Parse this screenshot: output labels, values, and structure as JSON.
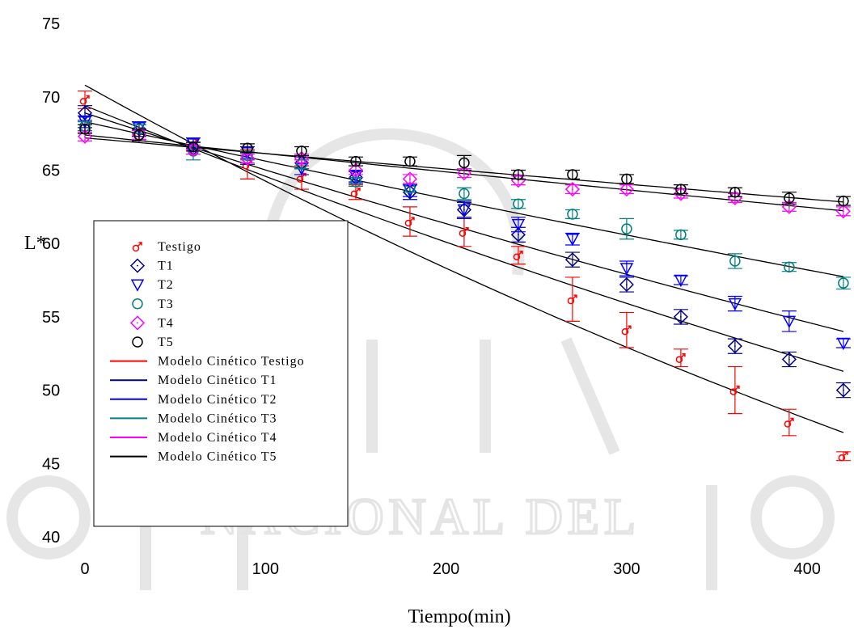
{
  "watermark_text": "NACIONAL DEL",
  "chart_data": {
    "type": "scatter",
    "xlabel": "Tiempo(min)",
    "ylabel": "L*",
    "xlim": [
      0,
      420
    ],
    "ylim": [
      40,
      75
    ],
    "xticks": [
      0,
      100,
      200,
      300,
      400
    ],
    "yticks": [
      40,
      45,
      50,
      55,
      60,
      65,
      70,
      75
    ],
    "grid": false,
    "legend_position": "lower-left",
    "series": [
      {
        "name": "Testigo",
        "marker": "male-symbol",
        "color": "#ff0000",
        "x": [
          0,
          30,
          60,
          90,
          120,
          150,
          180,
          210,
          240,
          270,
          300,
          330,
          360,
          390,
          420
        ],
        "y": [
          69.8,
          67.6,
          66.8,
          65.4,
          64.5,
          63.5,
          61.5,
          60.8,
          59.2,
          56.2,
          54.1,
          52.2,
          50.0,
          47.8,
          45.5
        ],
        "err": [
          0.6,
          0.5,
          0.4,
          1.0,
          0.8,
          0.5,
          1.0,
          1.0,
          0.6,
          1.5,
          1.2,
          0.6,
          1.6,
          0.9,
          0.3
        ]
      },
      {
        "name": "T1",
        "marker": "diamond",
        "color": "#000080",
        "x": [
          0,
          30,
          60,
          90,
          120,
          150,
          180,
          210,
          240,
          270,
          300,
          330,
          360,
          390,
          420
        ],
        "y": [
          68.9,
          67.8,
          66.5,
          65.8,
          65.5,
          64.5,
          63.5,
          62.3,
          60.6,
          58.9,
          57.2,
          55.0,
          53.0,
          52.1,
          50.0
        ],
        "err": [
          0.5,
          0.5,
          0.4,
          0.4,
          0.4,
          0.4,
          0.5,
          0.6,
          0.5,
          0.5,
          0.5,
          0.5,
          0.5,
          0.5,
          0.5
        ]
      },
      {
        "name": "T2",
        "marker": "triangle-down",
        "color": "#0000ff",
        "x": [
          0,
          30,
          60,
          90,
          120,
          150,
          180,
          210,
          240,
          270,
          300,
          330,
          360,
          390,
          420
        ],
        "y": [
          68.3,
          67.9,
          66.8,
          66.2,
          65.1,
          64.6,
          63.6,
          62.3,
          61.3,
          60.3,
          58.3,
          57.5,
          55.9,
          54.7,
          53.2
        ],
        "err": [
          0.4,
          0.4,
          0.4,
          0.4,
          0.4,
          0.4,
          0.4,
          0.5,
          0.5,
          0.4,
          0.5,
          0.3,
          0.5,
          0.7,
          0.3
        ]
      },
      {
        "name": "T3",
        "marker": "circle",
        "color": "#008080",
        "x": [
          0,
          30,
          60,
          90,
          120,
          150,
          180,
          210,
          240,
          270,
          300,
          330,
          360,
          390,
          420
        ],
        "y": [
          68.0,
          67.8,
          66.3,
          66.0,
          65.4,
          64.2,
          63.8,
          63.4,
          62.7,
          62.0,
          61.0,
          60.6,
          58.8,
          58.4,
          57.3
        ],
        "err": [
          0.3,
          0.3,
          0.6,
          0.3,
          0.3,
          0.3,
          0.3,
          0.4,
          0.3,
          0.3,
          0.7,
          0.3,
          0.5,
          0.3,
          0.4
        ]
      },
      {
        "name": "T4",
        "marker": "diamond",
        "color": "#ff00ff",
        "x": [
          0,
          30,
          60,
          90,
          120,
          150,
          180,
          210,
          240,
          270,
          300,
          330,
          360,
          390,
          420
        ],
        "y": [
          67.3,
          67.4,
          66.4,
          65.8,
          65.8,
          65.0,
          64.4,
          64.8,
          64.3,
          63.7,
          63.7,
          63.4,
          63.1,
          62.5,
          62.2
        ],
        "err": [
          0.3,
          0.3,
          0.3,
          0.3,
          0.3,
          0.3,
          0.3,
          0.3,
          0.3,
          0.3,
          0.3,
          0.3,
          0.3,
          0.3,
          0.3
        ]
      },
      {
        "name": "T5",
        "marker": "circle",
        "color": "#000000",
        "x": [
          0,
          30,
          60,
          90,
          120,
          150,
          180,
          210,
          240,
          270,
          300,
          330,
          360,
          390,
          420
        ],
        "y": [
          67.8,
          67.4,
          66.6,
          66.5,
          66.3,
          65.6,
          65.6,
          65.5,
          64.7,
          64.7,
          64.4,
          63.7,
          63.5,
          63.1,
          62.9
        ],
        "err": [
          0.3,
          0.4,
          0.3,
          0.3,
          0.3,
          0.3,
          0.3,
          0.5,
          0.3,
          0.3,
          0.3,
          0.3,
          0.3,
          0.4,
          0.3
        ]
      }
    ],
    "model_lines": [
      {
        "name": "Modelo Cinético Testigo",
        "color": "#ff0000",
        "y0": 70.8,
        "k": 0.00097
      },
      {
        "name": "Modelo Cinético T1",
        "color": "#000080",
        "y0": 69.4,
        "k": 0.00072
      },
      {
        "name": "Modelo Cinético T2",
        "color": "#0000ff",
        "y0": 68.9,
        "k": 0.00058
      },
      {
        "name": "Modelo Cinético T3",
        "color": "#008080",
        "y0": 68.3,
        "k": 0.0004
      },
      {
        "name": "Modelo Cinético T4",
        "color": "#ff00ff",
        "y0": 67.4,
        "k": 0.00019
      },
      {
        "name": "Modelo Cinético T5",
        "color": "#000000",
        "y0": 67.2,
        "k": 0.00016
      }
    ],
    "model_stroke": "#000000"
  }
}
